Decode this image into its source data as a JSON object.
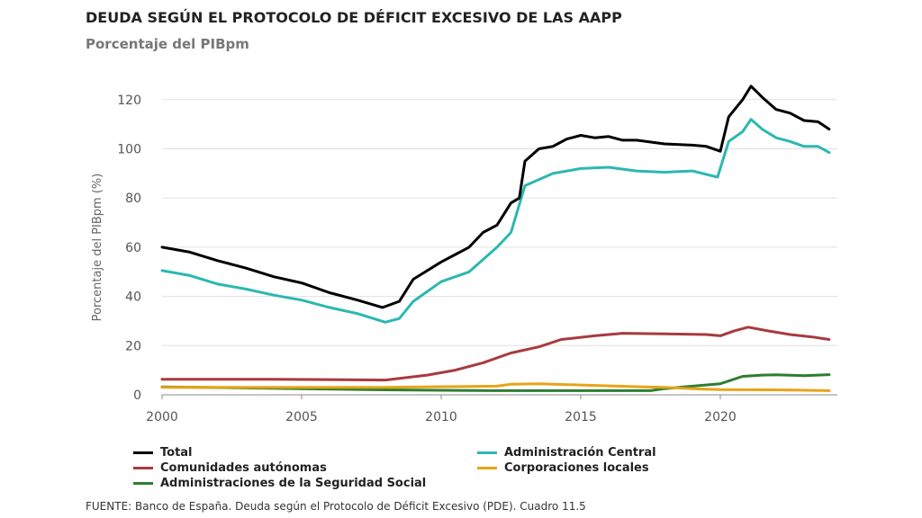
{
  "chart_data": {
    "type": "line",
    "title": "DEUDA SEGÚN EL PROTOCOLO DE DÉFICIT EXCESIVO DE LAS AAPP",
    "subtitle": "Porcentaje del PIBpm",
    "xlabel": "",
    "ylabel": "Porcentaje del PIBpm (%)",
    "xlim": [
      2000,
      2024
    ],
    "ylim": [
      0,
      130
    ],
    "xticks": [
      2000,
      2005,
      2010,
      2015,
      2020
    ],
    "yticks": [
      0,
      20,
      40,
      60,
      80,
      100,
      120
    ],
    "grid": "horizontal",
    "legend_position": "bottom",
    "series": [
      {
        "name": "Total",
        "color": "#000000",
        "x": [
          2000,
          2001,
          2002,
          2003,
          2004,
          2005,
          2006,
          2007,
          2007.9,
          2008.5,
          2009,
          2010,
          2011,
          2011.5,
          2012,
          2012.5,
          2012.8,
          2013,
          2013.5,
          2014,
          2014.5,
          2015,
          2015.5,
          2016,
          2016.5,
          2017,
          2018,
          2019,
          2019.5,
          2020,
          2020.3,
          2020.8,
          2021.1,
          2021.5,
          2022,
          2022.5,
          2023,
          2023.5,
          2023.9
        ],
        "y": [
          60,
          58,
          54.5,
          51.5,
          48,
          45.5,
          41.5,
          38.5,
          35.5,
          38,
          47,
          54,
          60,
          66,
          69,
          78,
          80,
          95,
          100,
          101,
          104,
          105.5,
          104.5,
          105,
          103.5,
          103.5,
          102,
          101.5,
          101,
          99,
          113,
          120,
          125.5,
          121,
          116,
          114.5,
          111.5,
          111,
          108
        ]
      },
      {
        "name": "Administración Central",
        "color": "#2bb8b0",
        "x": [
          2000,
          2001,
          2002,
          2003,
          2004,
          2005,
          2006,
          2007,
          2008,
          2008.5,
          2009,
          2010,
          2011,
          2012,
          2012.5,
          2013,
          2014,
          2015,
          2016,
          2017,
          2018,
          2019,
          2019.9,
          2020.3,
          2020.8,
          2021.1,
          2021.5,
          2022,
          2022.5,
          2023,
          2023.5,
          2023.9
        ],
        "y": [
          50.5,
          48.5,
          45,
          43,
          40.5,
          38.5,
          35.5,
          33,
          29.5,
          31,
          38,
          46,
          50,
          60,
          66,
          85,
          90,
          92,
          92.5,
          91,
          90.5,
          91,
          88.5,
          103,
          107,
          112,
          108,
          104.5,
          103,
          101,
          101,
          98.5
        ]
      },
      {
        "name": "Comunidades autónomas",
        "color": "#a83a3f",
        "x": [
          2000,
          2004,
          2008,
          2009.5,
          2010.5,
          2011.5,
          2012.5,
          2013.5,
          2014.3,
          2015.5,
          2016.5,
          2018,
          2019.5,
          2020,
          2020.5,
          2021,
          2021.7,
          2022.5,
          2023.3,
          2023.9
        ],
        "y": [
          6.3,
          6.3,
          6,
          8,
          10,
          13,
          17,
          19.5,
          22.5,
          24,
          25,
          24.8,
          24.5,
          24,
          26,
          27.5,
          26,
          24.5,
          23.5,
          22.5
        ]
      },
      {
        "name": "Corporaciones locales",
        "color": "#e8a317",
        "x": [
          2000,
          2008,
          2010,
          2012,
          2012.5,
          2013.5,
          2015,
          2017,
          2018,
          2019,
          2020,
          2022,
          2023.9
        ],
        "y": [
          3,
          3,
          3.3,
          3.5,
          4.3,
          4.5,
          4,
          3.3,
          3,
          2.5,
          2.1,
          2,
          1.7
        ]
      },
      {
        "name": "Administraciones de la Seguridad Social",
        "color": "#2e7d32",
        "x": [
          2000,
          2005,
          2008,
          2012,
          2017.5,
          2018,
          2019,
          2020,
          2020.8,
          2021.5,
          2022,
          2023,
          2023.9
        ],
        "y": [
          3.2,
          2.5,
          2,
          1.7,
          1.7,
          2.5,
          3.5,
          4.5,
          7.5,
          8,
          8.1,
          7.8,
          8.2
        ]
      }
    ]
  },
  "source": "FUENTE: Banco de España. Deuda según el Protocolo de Déficit Excesivo (PDE). Cuadro 11.5"
}
